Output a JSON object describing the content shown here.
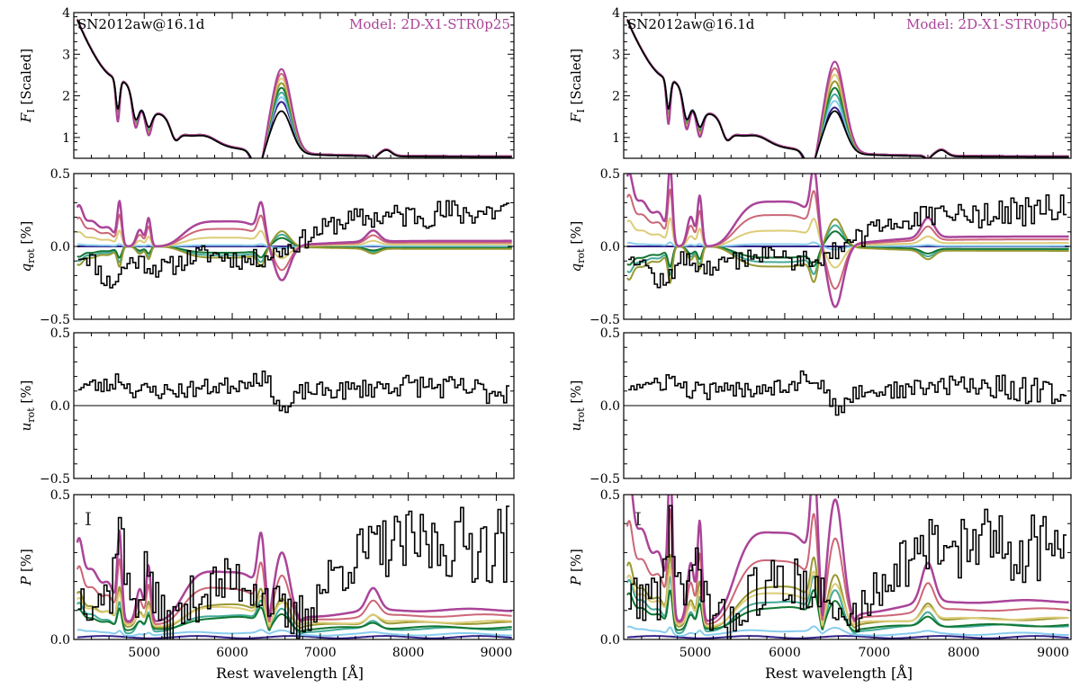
{
  "chart_data": {
    "type": "line",
    "xlabel": "Rest wavelength [Å]",
    "xlim": [
      4200,
      9200
    ],
    "xticks": [
      5000,
      6000,
      7000,
      8000,
      9000
    ],
    "colors": {
      "observed": "#000000",
      "models": [
        "#332288",
        "#88ccee",
        "#44aa99",
        "#117733",
        "#999933",
        "#ddcc77",
        "#cc6677",
        "#aa4499"
      ]
    },
    "panel_types": [
      {
        "key": "flux",
        "ylabel": "F_I [Scaled]",
        "ylabel_main": "F",
        "ylabel_sub": "I",
        "ylabel_rest": " [Scaled]",
        "ylim": [
          0.5,
          4
        ],
        "yticks": [
          1,
          2,
          3,
          4
        ],
        "ytick_labels": [
          "1",
          "2",
          "3",
          "4"
        ]
      },
      {
        "key": "q",
        "ylabel": "q_rot [%]",
        "ylabel_main": "q",
        "ylabel_sub": "rot",
        "ylabel_rest": " [%]",
        "ylim": [
          -0.5,
          0.5
        ],
        "yticks": [
          -0.5,
          0.0,
          0.5
        ],
        "ytick_labels": [
          "−0.5",
          "0.0",
          "0.5"
        ]
      },
      {
        "key": "u",
        "ylabel": "u_rot [%]",
        "ylabel_main": "u",
        "ylabel_sub": "rot",
        "ylabel_rest": " [%]",
        "ylim": [
          -0.5,
          0.5
        ],
        "yticks": [
          -0.5,
          0.0,
          0.5
        ],
        "ytick_labels": [
          "−0.5",
          "0.0",
          "0.5"
        ]
      },
      {
        "key": "P",
        "ylabel": "P [%]",
        "ylabel_main": "P",
        "ylabel_sub": "",
        "ylabel_rest": " [%]",
        "ylim": [
          0.0,
          0.5
        ],
        "yticks": [
          0.0,
          0.5
        ],
        "ytick_labels": [
          "0.0",
          "0.5"
        ]
      }
    ],
    "columns": [
      {
        "object_label": "SN2012aw@16.1d",
        "model_label": "Model: 2D-X1-STR0p25",
        "error_bar_symbol": "I",
        "polarization_scale": 0.95
      },
      {
        "object_label": "SN2012aw@16.1d",
        "model_label": "Model: 2D-X1-STR0p50",
        "error_bar_symbol": "I",
        "polarization_scale": 1.7
      }
    ]
  }
}
